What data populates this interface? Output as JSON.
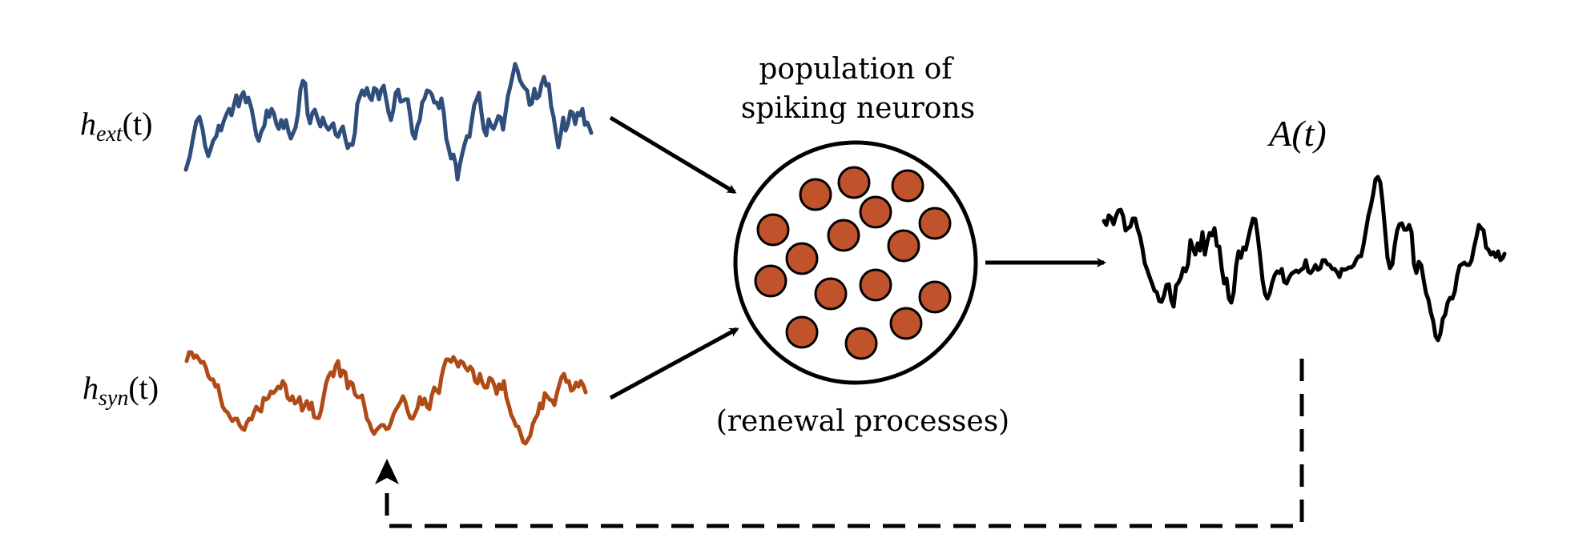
{
  "colors": {
    "external_signal": "#2f4e7b",
    "synaptic_signal": "#b04a16",
    "neuron_fill": "#c0532b",
    "ink": "#000000"
  },
  "inputs": {
    "external": {
      "symbol": "h",
      "subscript": "ext",
      "argument": "(t)"
    },
    "synaptic": {
      "symbol": "h",
      "subscript": "syn",
      "argument": "(t)"
    }
  },
  "population": {
    "title_line1": "population of",
    "title_line2": "spiking neurons",
    "caption": "(renewal processes)"
  },
  "output": {
    "label": "A(t)"
  },
  "icons": {
    "neuron": "circle-filled",
    "arrow": "arrowhead",
    "feedback": "dashed-arrow"
  }
}
